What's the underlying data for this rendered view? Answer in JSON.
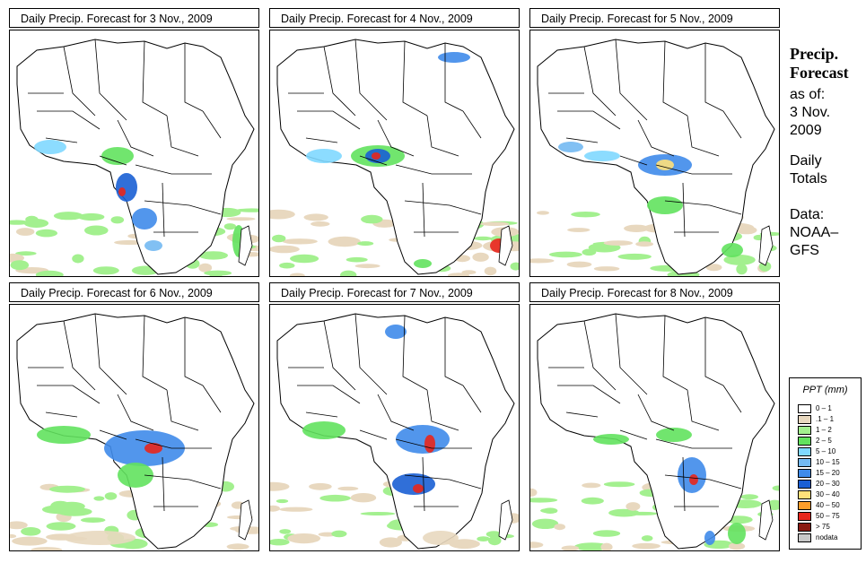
{
  "panels": [
    {
      "title": "Daily Precip. Forecast for  3 Nov., 2009",
      "date": "3 Nov., 2009"
    },
    {
      "title": "Daily Precip. Forecast for  4 Nov., 2009",
      "date": "4 Nov., 2009"
    },
    {
      "title": "Daily Precip. Forecast for  5 Nov., 2009",
      "date": "5 Nov., 2009"
    },
    {
      "title": "Daily Precip. Forecast for  6 Nov., 2009",
      "date": "6 Nov., 2009"
    },
    {
      "title": "Daily Precip. Forecast for  7 Nov., 2009",
      "date": "7 Nov., 2009"
    },
    {
      "title": "Daily Precip. Forecast for  8 Nov., 2009",
      "date": "8 Nov., 2009"
    }
  ],
  "sidebar": {
    "heading_line1": "Precip.",
    "heading_line2": "Forecast",
    "as_of": "as of:",
    "date_line1": "3 Nov.",
    "date_line2": "2009",
    "totals_line1": "Daily",
    "totals_line2": "Totals",
    "data_line1": "Data:",
    "data_line2": "NOAA–",
    "data_line3": "GFS"
  },
  "legend": {
    "title": "PPT (mm)",
    "classes": [
      {
        "label": "0 – 1",
        "color": "#ffffff"
      },
      {
        "label": ".1 – 1",
        "color": "#e8d8bf"
      },
      {
        "label": "1 – 2",
        "color": "#a3f08f"
      },
      {
        "label": "2 – 5",
        "color": "#62e25e"
      },
      {
        "label": "5 – 10",
        "color": "#7fd8ff"
      },
      {
        "label": "10 – 15",
        "color": "#73b9f2"
      },
      {
        "label": "15 – 20",
        "color": "#3f8bea"
      },
      {
        "label": "20 – 30",
        "color": "#1a5fd4"
      },
      {
        "label": "30 – 40",
        "color": "#ffe07a"
      },
      {
        "label": "40 – 50",
        "color": "#ff9e2a"
      },
      {
        "label": "50 – 75",
        "color": "#e8261c"
      },
      {
        "label": "> 75",
        "color": "#8a1a12"
      },
      {
        "label": "nodata",
        "color": "#c8c8c8"
      }
    ]
  }
}
